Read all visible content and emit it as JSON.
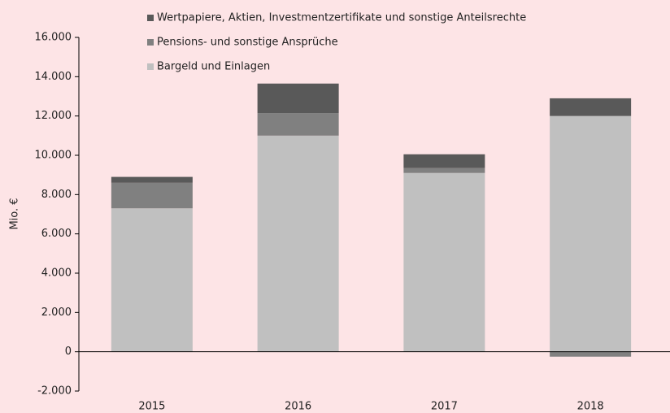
{
  "chart_data": {
    "type": "bar",
    "stacked": true,
    "y_label": "Mio. €",
    "categories": [
      "2015",
      "2016",
      "2017",
      "2018"
    ],
    "series": [
      {
        "name": "Bargeld und Einlagen",
        "color": "#c0c0c0",
        "values": [
          7300,
          11000,
          9100,
          12000
        ]
      },
      {
        "name": "Pensions- und sonstige Ansprüche",
        "color": "#808080",
        "values": [
          1300,
          1150,
          250,
          -250
        ]
      },
      {
        "name": "Wertpapiere, Aktien, Investmentzertifikate und sonstige Anteilsrechte",
        "color": "#595959",
        "values": [
          300,
          1500,
          700,
          900
        ]
      }
    ],
    "ylim": [
      -2000,
      16000
    ],
    "yticks": [
      {
        "value": -2000,
        "label": "-2.000"
      },
      0,
      {
        "value": 2000,
        "label": "2.000"
      },
      {
        "value": 4000,
        "label": "4.000"
      },
      {
        "value": 6000,
        "label": "6.000"
      },
      {
        "value": 8000,
        "label": "8.000"
      },
      {
        "value": 10000,
        "label": "10.000"
      },
      {
        "value": 12000,
        "label": "12.000"
      },
      {
        "value": 14000,
        "label": "14.000"
      },
      {
        "value": 16000,
        "label": "16.000"
      }
    ],
    "legend": "top"
  }
}
